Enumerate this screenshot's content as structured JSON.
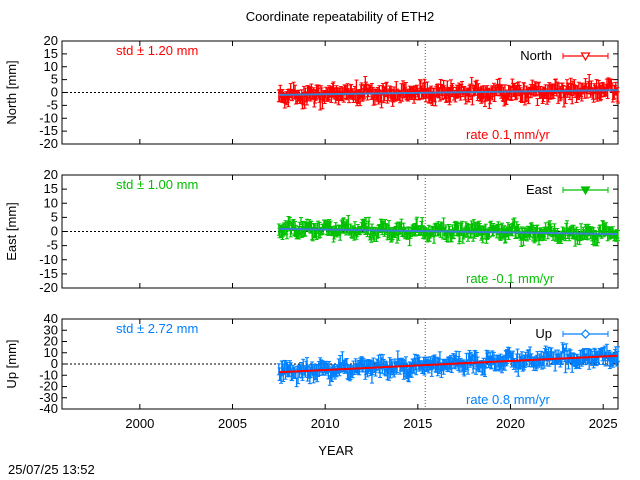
{
  "title": "Coordinate repeatability of ETH2",
  "footer_timestamp": "25/07/25 13:52",
  "xlabel": "YEAR",
  "x_range": [
    1995.8,
    2025.8
  ],
  "x_ticks": [
    2000,
    2005,
    2010,
    2015,
    2020,
    2025
  ],
  "vertical_reference_year": 2015.4,
  "data_start_year": 2007.5,
  "data_end_year": 2025.8,
  "chart_data": [
    {
      "type": "scatter",
      "component": "North",
      "ylabel": "North [mm]",
      "ylim": [
        -20,
        20
      ],
      "yticks": [
        -20,
        -15,
        -10,
        -5,
        0,
        5,
        10,
        15,
        20
      ],
      "color": "#ff0000",
      "trend_color": "#3a7fd0",
      "std_text": "std ± 1.20 mm",
      "rate_text": "rate  0.1 mm/yr",
      "rate_mm_per_yr": 0.1,
      "noise_std_mm": 1.2,
      "series": [
        {
          "name": "North",
          "marker": "triangle-down-open"
        }
      ]
    },
    {
      "type": "scatter",
      "component": "East",
      "ylabel": "East [mm]",
      "ylim": [
        -20,
        20
      ],
      "yticks": [
        -20,
        -15,
        -10,
        -5,
        0,
        5,
        10,
        15,
        20
      ],
      "color": "#00c000",
      "trend_color": "#3a7fd0",
      "std_text": "std ± 1.00 mm",
      "rate_text": "rate -0.1 mm/yr",
      "rate_mm_per_yr": -0.1,
      "noise_std_mm": 1.0,
      "series": [
        {
          "name": "East",
          "marker": "triangle-down-filled"
        }
      ]
    },
    {
      "type": "scatter",
      "component": "Up",
      "ylabel": "Up [mm]",
      "ylim": [
        -40,
        40
      ],
      "yticks": [
        -40,
        -30,
        -20,
        -10,
        0,
        10,
        20,
        30,
        40
      ],
      "color": "#0080ff",
      "trend_color": "#ff0000",
      "std_text": "std ± 2.72 mm",
      "rate_text": "rate  0.8 mm/yr",
      "rate_mm_per_yr": 0.8,
      "noise_std_mm": 2.72,
      "series": [
        {
          "name": "Up",
          "marker": "diamond-open"
        }
      ]
    }
  ]
}
